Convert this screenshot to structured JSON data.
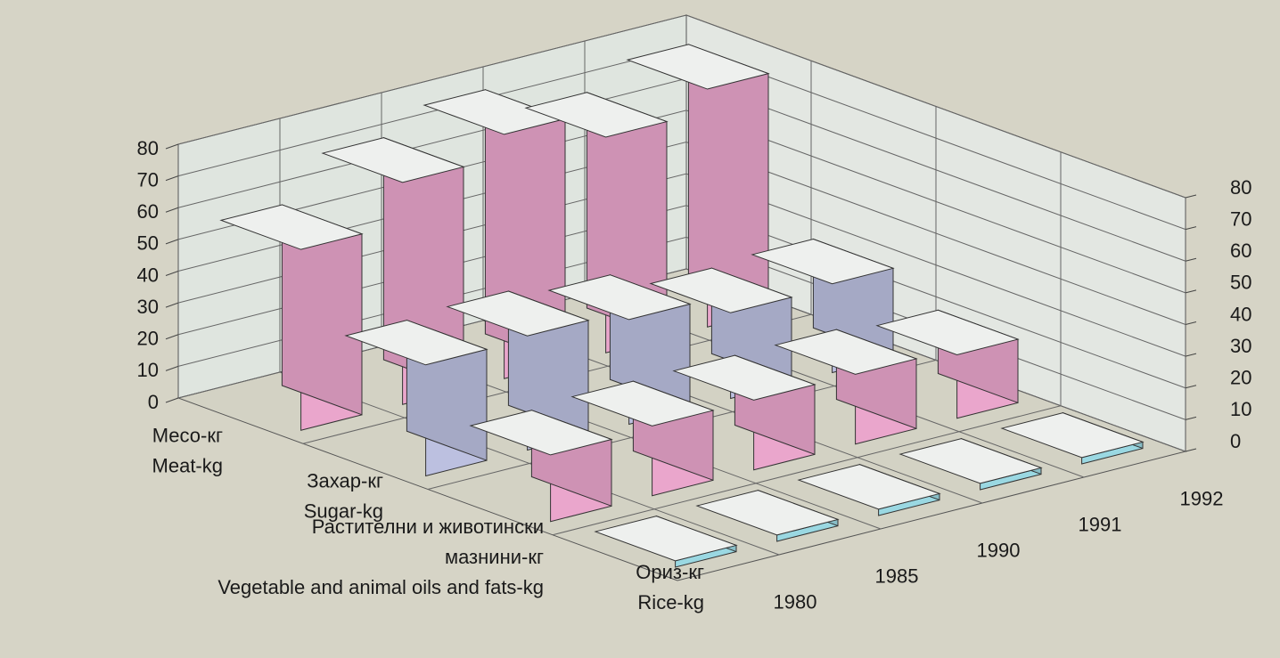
{
  "chart_data": {
    "type": "bar3d",
    "categories": [
      "1980",
      "1985",
      "1990",
      "1991",
      "1992"
    ],
    "series": [
      {
        "name": "Месо-кг",
        "name_en": "Meat-kg",
        "color": "#eaa6cc",
        "values": [
          57,
          70,
          77,
          68,
          75
        ]
      },
      {
        "name": "Захар-кг",
        "name_en": "Sugar-kg",
        "color": "#bcc0e0",
        "values": [
          35,
          36,
          33,
          27,
          28
        ]
      },
      {
        "name": "Растителни и животински мазнини-кг",
        "name_en": "Vegetable and animal oils and fats-kg",
        "color": "#eaa6cc",
        "values": [
          21,
          22,
          22,
          22,
          20
        ]
      },
      {
        "name": "Ориз-кг",
        "name_en": "Rice-kg",
        "color": "#9ad8e2",
        "values": [
          2,
          2,
          2,
          2,
          2
        ]
      }
    ],
    "ylim": [
      0,
      80
    ],
    "yticks": [
      0,
      10,
      20,
      30,
      40,
      50,
      60,
      70,
      80
    ],
    "grid": true
  }
}
